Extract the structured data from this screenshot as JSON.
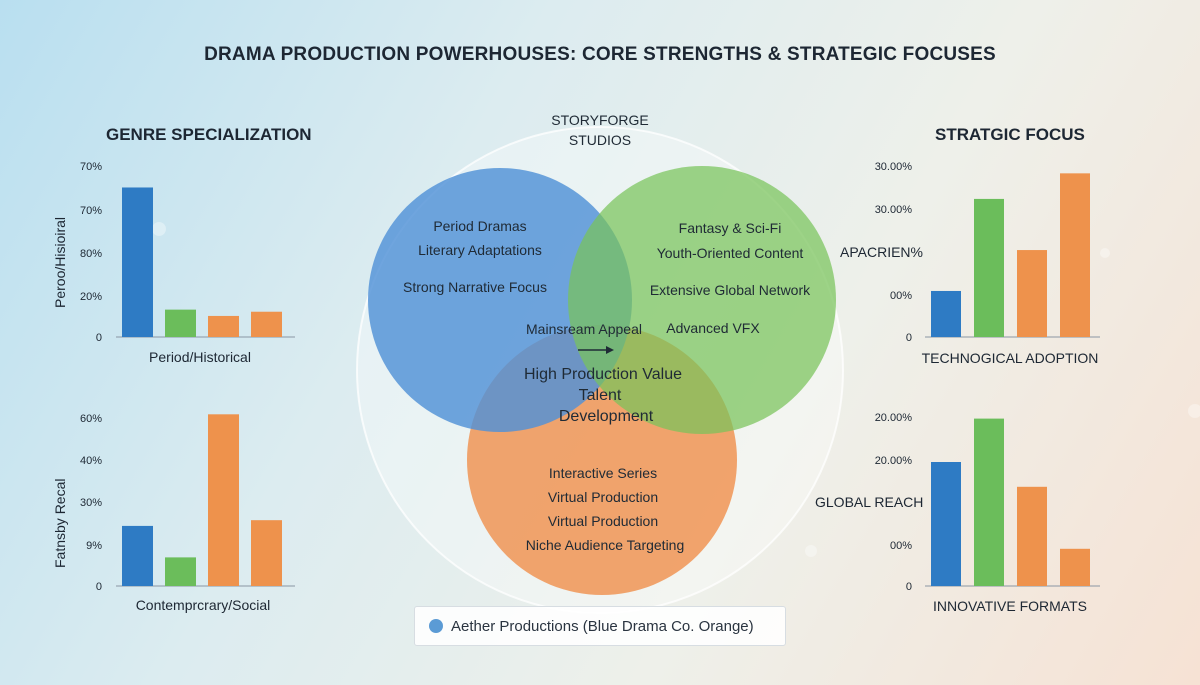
{
  "title": "DRAMA PRODUCTION POWERHOUSES: CORE STRENGTHS & STRATEGIC FOCUSES",
  "left_title": "GENRE SPECIALIZATION",
  "right_title": "STRATGIC FOCUS",
  "colors": {
    "blue": "#2e7bc4",
    "green": "#6bbd5b",
    "orange": "#ee924c"
  },
  "venn": {
    "top_label_line1": "STORYFORGE",
    "top_label_line2": "STUDIOS",
    "blue_items": [
      "Period Dramas",
      "Literary Adaptations",
      "Strong Narrative Focus"
    ],
    "green_items": [
      "Fantasy & Sci-Fi",
      "Youth-Oriented Content",
      "Extensive Global Network",
      "Advanced VFX"
    ],
    "center_item": "Mainsream Appeal",
    "center_items": [
      "High Production Value",
      "Talent",
      "Development"
    ],
    "orange_items": [
      "Interactive Series",
      "Virtual Production",
      "Virtual Production",
      "Niche Audience Targeting"
    ]
  },
  "legend": {
    "text": "Aether Productions (Blue Drama Co. Orange)"
  },
  "chart_data": [
    {
      "type": "bar",
      "ylabel": "Peroo/Hisioiral",
      "xlabel": "Period/Historical",
      "tick_labels": [
        "70%",
        "70%",
        "80%",
        "20%",
        "0"
      ],
      "values": [
        71,
        13,
        10,
        12
      ],
      "ylim": [
        0,
        85
      ]
    },
    {
      "type": "bar",
      "ylabel": "Fatnsby Recal",
      "xlabel": "Contemprcrary/Social",
      "tick_labels": [
        "60%",
        "40%",
        "30%",
        "9%",
        "0"
      ],
      "values": [
        21,
        10,
        60,
        23
      ],
      "ylim": [
        0,
        65
      ]
    },
    {
      "type": "bar",
      "side_label": "APACRIEN%",
      "xlabel": "TECHNOGICAL ADOPTION",
      "tick_labels": [
        "30.00%",
        "30.00%",
        "00%",
        "0"
      ],
      "values": [
        9,
        27,
        17,
        32
      ],
      "ylim": [
        0,
        35
      ]
    },
    {
      "type": "bar",
      "side_label": "GLOBAL REACH",
      "xlabel": "INNOVATIVE FORMATS",
      "tick_labels": [
        "20.00%",
        "20.00%",
        "00%",
        "0"
      ],
      "values": [
        20,
        27,
        16,
        6
      ],
      "ylim": [
        0,
        30
      ]
    }
  ]
}
